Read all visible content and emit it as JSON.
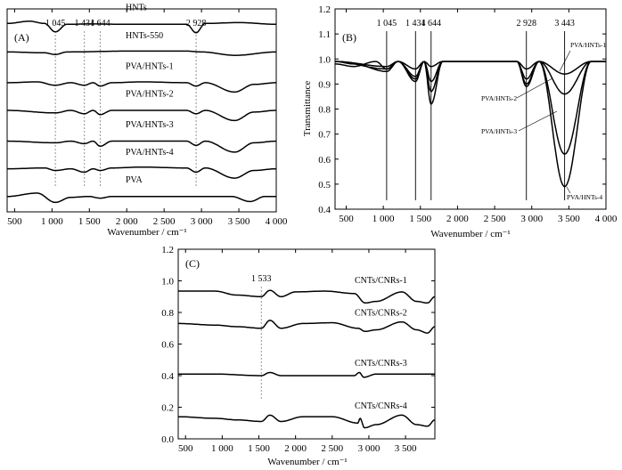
{
  "chart_data": [
    {
      "panel": "(A)",
      "type": "line",
      "xlabel": "Wavenumber / cm⁻¹",
      "ylabel": "",
      "xlim": [
        400,
        4000
      ],
      "x_ticks": [
        "500",
        "1 000",
        "1 500",
        "2 000",
        "2 500",
        "3 000",
        "3 500",
        "4 000"
      ],
      "y_ticks": [],
      "markers": [
        {
          "x": 1045,
          "label": "1 045"
        },
        {
          "x": 1434,
          "label": "1 434"
        },
        {
          "x": 1644,
          "label": "1 644"
        },
        {
          "x": 2928,
          "label": "2 928"
        }
      ],
      "series": [
        {
          "name": "HNTs",
          "offset": 6.7,
          "points": [
            [
              400,
              0.05
            ],
            [
              700,
              0.18
            ],
            [
              900,
              0.05
            ],
            [
              1045,
              -0.45
            ],
            [
              1200,
              0.0
            ],
            [
              1500,
              0.02
            ],
            [
              2000,
              0.0
            ],
            [
              2800,
              0.0
            ],
            [
              2928,
              -0.5
            ],
            [
              3050,
              0.05
            ],
            [
              3500,
              0.1
            ],
            [
              4000,
              0.0
            ]
          ]
        },
        {
          "name": "HNTs-550",
          "offset": 5.8,
          "points": [
            [
              400,
              0.0
            ],
            [
              900,
              -0.05
            ],
            [
              1045,
              -0.15
            ],
            [
              1200,
              0.0
            ],
            [
              2000,
              0.05
            ],
            [
              2800,
              0.05
            ],
            [
              3000,
              0.0
            ],
            [
              3450,
              -0.2
            ],
            [
              4000,
              0.0
            ]
          ]
        },
        {
          "name": "PVA/HNTs-1",
          "offset": 4.8,
          "points": [
            [
              400,
              0.0
            ],
            [
              800,
              0.05
            ],
            [
              1045,
              -0.15
            ],
            [
              1250,
              0.0
            ],
            [
              1434,
              -0.15
            ],
            [
              1550,
              0.0
            ],
            [
              1644,
              -0.2
            ],
            [
              1800,
              0.0
            ],
            [
              2200,
              0.05
            ],
            [
              2800,
              0.0
            ],
            [
              2928,
              -0.2
            ],
            [
              3050,
              0.0
            ],
            [
              3443,
              -0.55
            ],
            [
              3700,
              -0.1
            ],
            [
              4000,
              0.0
            ]
          ]
        },
        {
          "name": "PVA/HNTs-2",
          "offset": 3.9,
          "points": [
            [
              400,
              0.0
            ],
            [
              1045,
              -0.15
            ],
            [
              1250,
              0.0
            ],
            [
              1434,
              -0.2
            ],
            [
              1550,
              0.0
            ],
            [
              1644,
              -0.25
            ],
            [
              1800,
              0.0
            ],
            [
              2800,
              0.0
            ],
            [
              2928,
              -0.2
            ],
            [
              3050,
              0.0
            ],
            [
              3443,
              -0.6
            ],
            [
              3700,
              -0.1
            ],
            [
              4000,
              0.0
            ]
          ]
        },
        {
          "name": "PVA/HNTs-3",
          "offset": 2.9,
          "points": [
            [
              400,
              0.0
            ],
            [
              1045,
              -0.1
            ],
            [
              1250,
              0.0
            ],
            [
              1434,
              -0.15
            ],
            [
              1550,
              0.0
            ],
            [
              1644,
              -0.3
            ],
            [
              1800,
              0.0
            ],
            [
              2800,
              0.0
            ],
            [
              2928,
              -0.25
            ],
            [
              3050,
              0.0
            ],
            [
              3443,
              -0.65
            ],
            [
              3700,
              -0.1
            ],
            [
              4000,
              0.0
            ]
          ]
        },
        {
          "name": "PVA/HNTs-4",
          "offset": 2.0,
          "points": [
            [
              400,
              0.0
            ],
            [
              900,
              0.05
            ],
            [
              1045,
              -0.1
            ],
            [
              1250,
              0.0
            ],
            [
              1434,
              -0.2
            ],
            [
              1550,
              0.0
            ],
            [
              1644,
              -0.1
            ],
            [
              1800,
              0.05
            ],
            [
              2200,
              0.1
            ],
            [
              2800,
              0.05
            ],
            [
              2928,
              -0.2
            ],
            [
              3050,
              0.05
            ],
            [
              3443,
              -0.55
            ],
            [
              3700,
              -0.1
            ],
            [
              4000,
              0.0
            ]
          ]
        },
        {
          "name": "PVA",
          "offset": 1.1,
          "points": [
            [
              400,
              0.0
            ],
            [
              800,
              0.2
            ],
            [
              1045,
              -0.35
            ],
            [
              1250,
              -0.05
            ],
            [
              1500,
              0.0
            ],
            [
              1644,
              -0.1
            ],
            [
              1800,
              0.0
            ],
            [
              2400,
              0.0
            ],
            [
              2900,
              0.0
            ],
            [
              3400,
              0.0
            ],
            [
              3650,
              -0.3
            ],
            [
              3850,
              0.0
            ],
            [
              4000,
              0.0
            ]
          ]
        }
      ]
    },
    {
      "panel": "(B)",
      "type": "line",
      "xlabel": "Wavenumber / cm⁻¹",
      "ylabel": "Transmittance",
      "xlim": [
        350,
        4000
      ],
      "ylim": [
        0.4,
        1.2
      ],
      "x_ticks": [
        "500",
        "1 000",
        "1 500",
        "2 000",
        "2 500",
        "3 000",
        "3 500",
        "4 000"
      ],
      "y_ticks": [
        "0.4",
        "0.5",
        "0.6",
        "0.7",
        "0.8",
        "0.9",
        "1.0",
        "1.1",
        "1.2"
      ],
      "markers": [
        {
          "x": 1045,
          "label": "1 045"
        },
        {
          "x": 1434,
          "label": "1 434"
        },
        {
          "x": 1644,
          "label": "1 644"
        },
        {
          "x": 2928,
          "label": "2 928"
        },
        {
          "x": 3443,
          "label": "3 443"
        }
      ],
      "series": [
        {
          "name": "PVA/HNTs-1",
          "points": [
            [
              350,
              0.99
            ],
            [
              1045,
              0.97
            ],
            [
              1200,
              0.99
            ],
            [
              1434,
              0.96
            ],
            [
              1550,
              0.99
            ],
            [
              1644,
              0.97
            ],
            [
              1800,
              0.99
            ],
            [
              2800,
              0.99
            ],
            [
              2928,
              0.96
            ],
            [
              3100,
              0.99
            ],
            [
              3443,
              0.94
            ],
            [
              3800,
              0.99
            ],
            [
              4000,
              0.99
            ]
          ]
        },
        {
          "name": "PVA/HNTs-2",
          "points": [
            [
              350,
              0.98
            ],
            [
              600,
              0.97
            ],
            [
              900,
              0.99
            ],
            [
              1045,
              0.96
            ],
            [
              1200,
              0.99
            ],
            [
              1434,
              0.93
            ],
            [
              1550,
              0.99
            ],
            [
              1644,
              0.91
            ],
            [
              1800,
              0.99
            ],
            [
              2800,
              0.99
            ],
            [
              2928,
              0.92
            ],
            [
              3100,
              0.99
            ],
            [
              3443,
              0.86
            ],
            [
              3800,
              0.99
            ],
            [
              4000,
              0.99
            ]
          ]
        },
        {
          "name": "PVA/HNTs-3",
          "points": [
            [
              350,
              0.99
            ],
            [
              1045,
              0.96
            ],
            [
              1200,
              0.99
            ],
            [
              1434,
              0.92
            ],
            [
              1550,
              0.99
            ],
            [
              1644,
              0.87
            ],
            [
              1800,
              0.99
            ],
            [
              2800,
              0.99
            ],
            [
              2928,
              0.9
            ],
            [
              3100,
              0.99
            ],
            [
              3443,
              0.62
            ],
            [
              3800,
              0.99
            ],
            [
              4000,
              0.99
            ]
          ]
        },
        {
          "name": "PVA/HNTs-4",
          "points": [
            [
              350,
              0.99
            ],
            [
              600,
              0.98
            ],
            [
              1045,
              0.95
            ],
            [
              1200,
              0.99
            ],
            [
              1434,
              0.91
            ],
            [
              1550,
              0.99
            ],
            [
              1644,
              0.82
            ],
            [
              1800,
              0.99
            ],
            [
              2800,
              0.99
            ],
            [
              2928,
              0.89
            ],
            [
              3100,
              0.99
            ],
            [
              3443,
              0.49
            ],
            [
              3800,
              0.99
            ],
            [
              4000,
              0.99
            ]
          ]
        }
      ]
    },
    {
      "panel": "(C)",
      "type": "line",
      "xlabel": "Wavenumber / cm⁻¹",
      "ylabel": "",
      "xlim": [
        400,
        3900
      ],
      "ylim": [
        0.0,
        1.2
      ],
      "x_ticks": [
        "500",
        "1 000",
        "1 500",
        "2 000",
        "2 500",
        "3 000",
        "3 500"
      ],
      "y_ticks": [
        "0.0",
        "0.2",
        "0.4",
        "0.6",
        "0.8",
        "1.0",
        "1.2"
      ],
      "markers": [
        {
          "x": 1533,
          "label": "1 533"
        }
      ],
      "series": [
        {
          "name": "CNTs/CNRs-1",
          "points": [
            [
              400,
              0.935
            ],
            [
              900,
              0.935
            ],
            [
              1200,
              0.91
            ],
            [
              1533,
              0.9
            ],
            [
              1650,
              0.94
            ],
            [
              1800,
              0.9
            ],
            [
              2000,
              0.93
            ],
            [
              2400,
              0.935
            ],
            [
              2800,
              0.92
            ],
            [
              2950,
              0.86
            ],
            [
              3100,
              0.87
            ],
            [
              3450,
              0.93
            ],
            [
              3650,
              0.87
            ],
            [
              3800,
              0.86
            ],
            [
              3900,
              0.9
            ]
          ]
        },
        {
          "name": "CNTs/CNRs-2",
          "points": [
            [
              400,
              0.73
            ],
            [
              900,
              0.72
            ],
            [
              1200,
              0.71
            ],
            [
              1533,
              0.7
            ],
            [
              1650,
              0.75
            ],
            [
              1800,
              0.7
            ],
            [
              2100,
              0.73
            ],
            [
              2500,
              0.735
            ],
            [
              2850,
              0.7
            ],
            [
              2950,
              0.68
            ],
            [
              3100,
              0.69
            ],
            [
              3450,
              0.74
            ],
            [
              3650,
              0.69
            ],
            [
              3800,
              0.67
            ],
            [
              3900,
              0.71
            ]
          ]
        },
        {
          "name": "CNTs/CNRs-3",
          "points": [
            [
              400,
              0.41
            ],
            [
              900,
              0.41
            ],
            [
              1533,
              0.4
            ],
            [
              1650,
              0.42
            ],
            [
              1800,
              0.4
            ],
            [
              2800,
              0.4
            ],
            [
              2870,
              0.42
            ],
            [
              2930,
              0.39
            ],
            [
              3100,
              0.41
            ],
            [
              3900,
              0.41
            ]
          ]
        },
        {
          "name": "CNTs/CNRs-4",
          "points": [
            [
              400,
              0.14
            ],
            [
              900,
              0.13
            ],
            [
              1200,
              0.12
            ],
            [
              1533,
              0.11
            ],
            [
              1650,
              0.15
            ],
            [
              1800,
              0.11
            ],
            [
              2100,
              0.14
            ],
            [
              2500,
              0.14
            ],
            [
              2850,
              0.1
            ],
            [
              2880,
              0.13
            ],
            [
              2940,
              0.07
            ],
            [
              3100,
              0.09
            ],
            [
              3450,
              0.15
            ],
            [
              3650,
              0.09
            ],
            [
              3800,
              0.08
            ],
            [
              3900,
              0.12
            ]
          ]
        }
      ]
    }
  ]
}
